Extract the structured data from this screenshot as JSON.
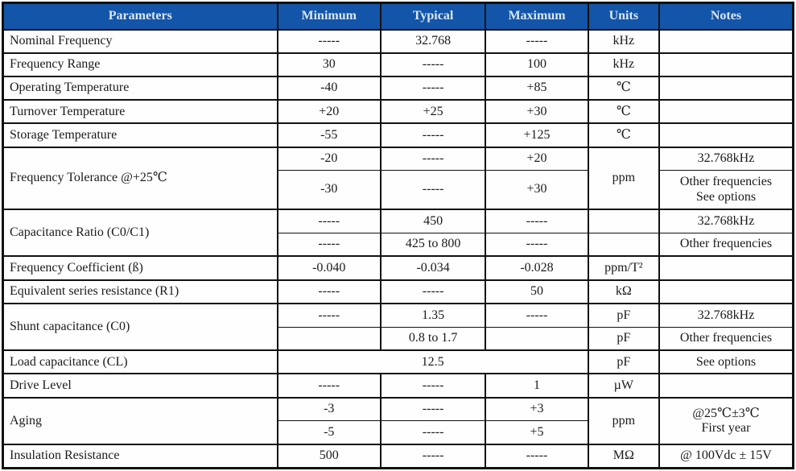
{
  "colors": {
    "header_bg": "#1355a8",
    "header_text": "#d9e7f8",
    "border": "#111111",
    "body_text": "#1a1a1a",
    "page_bg": "#ffffff"
  },
  "table": {
    "headers": {
      "param": "Parameters",
      "min": "Minimum",
      "typ": "Typical",
      "max": "Maximum",
      "units": "Units",
      "notes": "Notes"
    },
    "rows": {
      "nominal_frequency": {
        "param": "Nominal Frequency",
        "min": "-----",
        "typ": "32.768",
        "max": "-----",
        "units": "kHz",
        "notes": ""
      },
      "frequency_range": {
        "param": "Frequency Range",
        "min": "30",
        "typ": "-----",
        "max": "100",
        "units": "kHz",
        "notes": ""
      },
      "operating_temperature": {
        "param": "Operating Temperature",
        "min": "-40",
        "typ": "-----",
        "max": "+85",
        "units": "℃",
        "notes": ""
      },
      "turnover_temperature": {
        "param": "Turnover Temperature",
        "min": "+20",
        "typ": "+25",
        "max": "+30",
        "units": "℃",
        "notes": ""
      },
      "storage_temperature": {
        "param": "Storage Temperature",
        "min": "-55",
        "typ": "-----",
        "max": "+125",
        "units": "℃",
        "notes": ""
      },
      "frequency_tolerance": {
        "param": "Frequency Tolerance @+25℃",
        "units": "ppm",
        "r1": {
          "min": "-20",
          "typ": "-----",
          "max": "+20",
          "notes": "32.768kHz"
        },
        "r2": {
          "min": "-30",
          "typ": "-----",
          "max": "+30",
          "notes": "Other frequencies\nSee options"
        }
      },
      "capacitance_ratio": {
        "param": "Capacitance Ratio (C0/C1)",
        "r1": {
          "min": "-----",
          "typ": "450",
          "max": "-----",
          "units": "",
          "notes": "32.768kHz"
        },
        "r2": {
          "min": "-----",
          "typ": "425 to 800",
          "max": "-----",
          "units": "",
          "notes": "Other frequencies"
        }
      },
      "frequency_coefficient": {
        "param": "Frequency Coefficient (ß)",
        "min": "-0.040",
        "typ": "-0.034",
        "max": "-0.028",
        "units": "ppm/T²",
        "notes": ""
      },
      "esr": {
        "param": "Equivalent series resistance (R1)",
        "min": "-----",
        "typ": "-----",
        "max": "50",
        "units": "kΩ",
        "notes": ""
      },
      "shunt_capacitance": {
        "param": "Shunt capacitance (C0)",
        "r1": {
          "min": "-----",
          "typ": "1.35",
          "max": "-----",
          "units": "pF",
          "notes": "32.768kHz"
        },
        "r2": {
          "min": "",
          "typ": "0.8 to 1.7",
          "max": "",
          "units": "pF",
          "notes": "Other frequencies"
        }
      },
      "load_capacitance": {
        "param": "Load capacitance (CL)",
        "value": "12.5",
        "units": "pF",
        "notes": "See options"
      },
      "drive_level": {
        "param": "Drive Level",
        "min": "-----",
        "typ": "-----",
        "max": "1",
        "units": "µW",
        "notes": ""
      },
      "aging": {
        "param": "Aging",
        "units": "ppm",
        "notes": "@25℃±3℃\nFirst year",
        "r1": {
          "min": "-3",
          "typ": "-----",
          "max": "+3"
        },
        "r2": {
          "min": "-5",
          "typ": "-----",
          "max": "+5"
        }
      },
      "insulation_resistance": {
        "param": "Insulation Resistance",
        "min": "500",
        "typ": "-----",
        "max": "-----",
        "units": "MΩ",
        "notes": "@ 100Vdc ± 15V"
      }
    }
  }
}
